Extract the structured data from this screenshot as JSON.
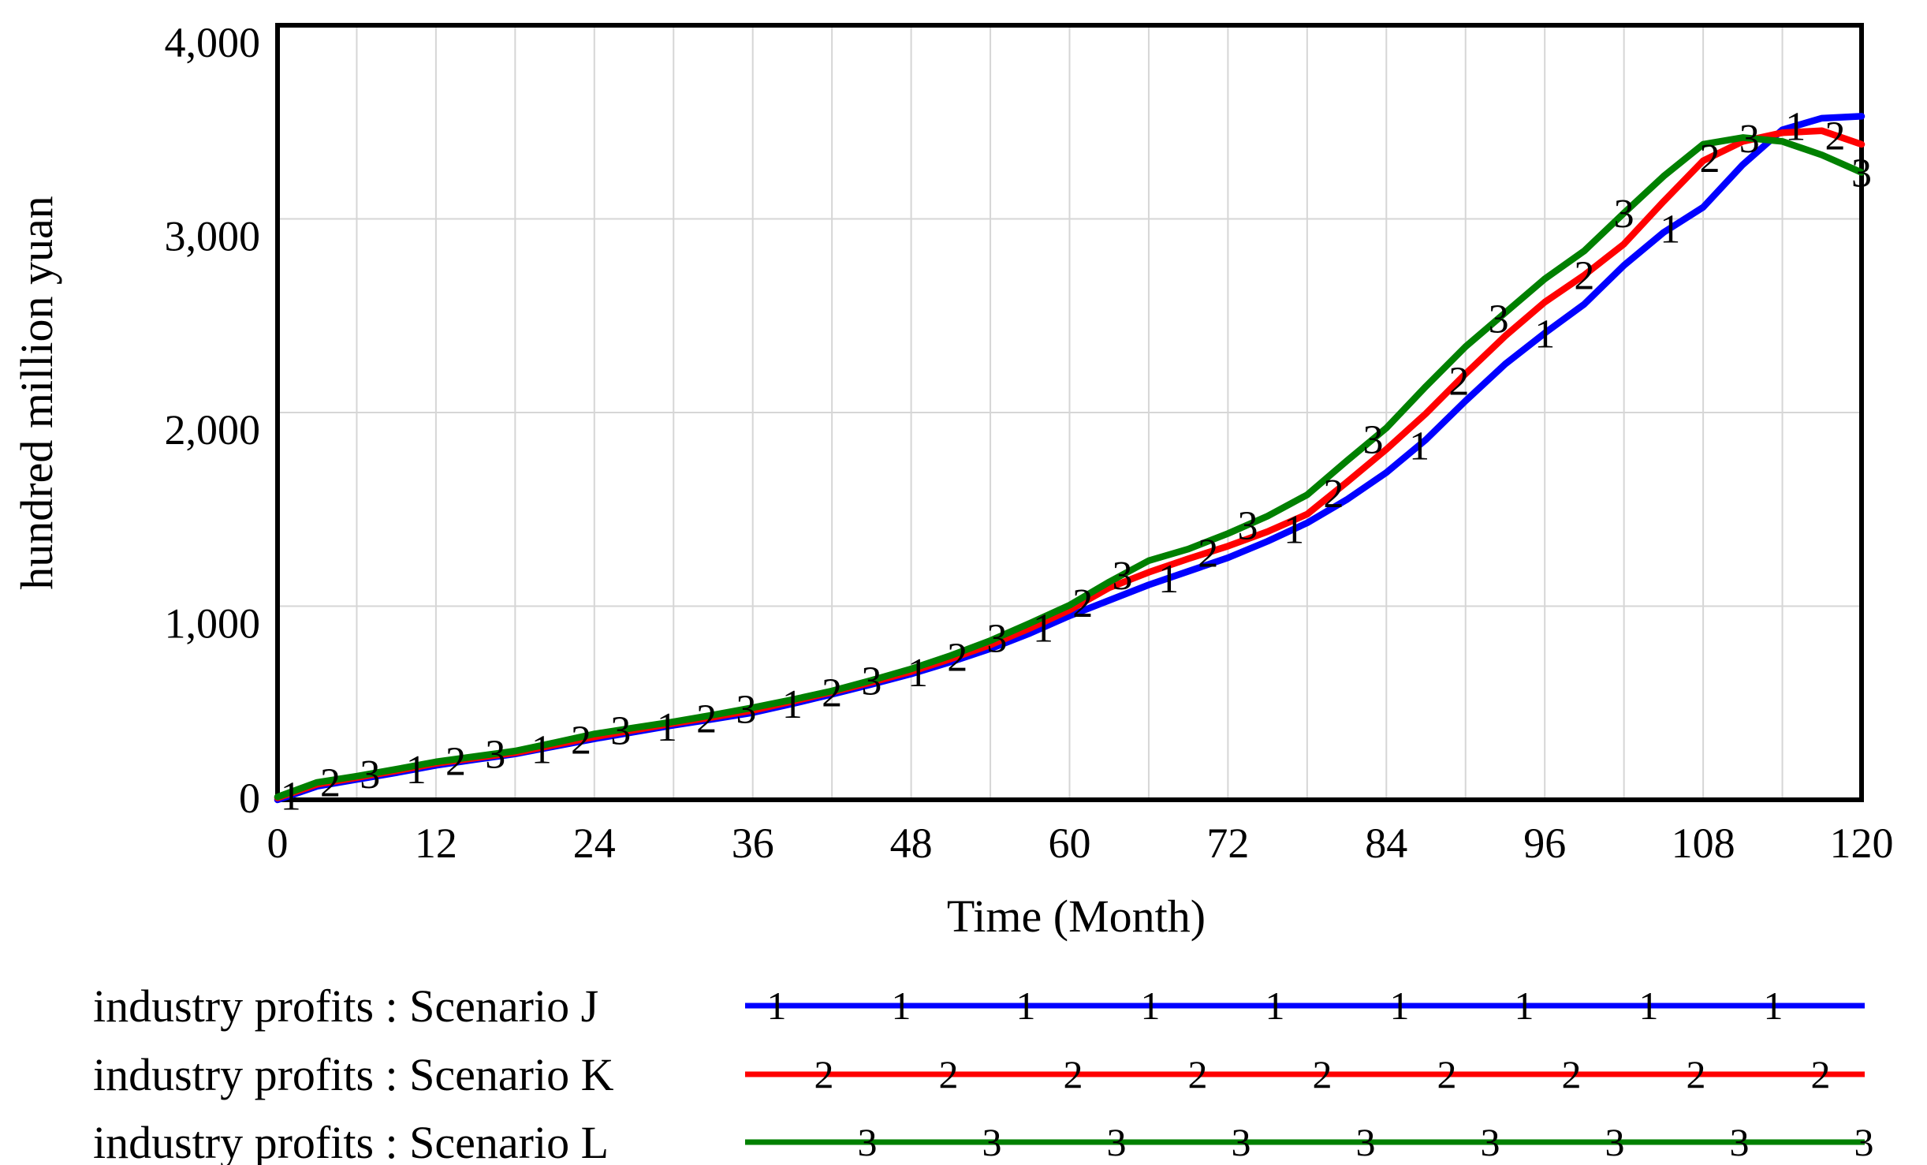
{
  "figure": {
    "y_axis_title": "hundred million yuan",
    "x_axis_title": "Time (Month)",
    "y_tick_labels": [
      "4,000",
      "3,000",
      "2,000",
      "1,000",
      "0"
    ],
    "x_tick_labels": [
      "0",
      "12",
      "24",
      "36",
      "48",
      "60",
      "72",
      "84",
      "96",
      "108",
      "120"
    ]
  },
  "legend": [
    {
      "label": "industry profits : Scenario J",
      "marker": "1",
      "color": "#0000ff"
    },
    {
      "label": "industry profits : Scenario K",
      "marker": "2",
      "color": "#ff0000"
    },
    {
      "label": "industry profits : Scenario L",
      "marker": "3",
      "color": "#008000"
    }
  ],
  "chart_data": {
    "type": "line",
    "title": "",
    "xlabel": "Time (Month)",
    "ylabel": "hundred million yuan",
    "xlim": [
      0,
      120
    ],
    "ylim": [
      0,
      4000
    ],
    "x_tick_step": 12,
    "y_tick_step": 1000,
    "grid": {
      "on": true,
      "x_step": 6,
      "y_step": 1000,
      "color": "#d6d6d6"
    },
    "legend_position": "bottom",
    "x": [
      0,
      3,
      6,
      9,
      12,
      15,
      18,
      21,
      24,
      27,
      30,
      33,
      36,
      39,
      42,
      45,
      48,
      51,
      54,
      57,
      60,
      63,
      66,
      69,
      72,
      75,
      78,
      81,
      84,
      87,
      90,
      93,
      96,
      99,
      102,
      105,
      108,
      111,
      114,
      117,
      120
    ],
    "series": [
      {
        "name": "industry profits : Scenario J",
        "marker": "1",
        "color": "#0000ff",
        "values": [
          0,
          70,
          105,
          140,
          178,
          208,
          237,
          276,
          315,
          350,
          385,
          417,
          450,
          496,
          545,
          596,
          650,
          712,
          780,
          860,
          950,
          1030,
          1110,
          1180,
          1250,
          1335,
          1430,
          1550,
          1690,
          1860,
          2060,
          2250,
          2410,
          2560,
          2760,
          2930,
          3060,
          3280,
          3460,
          3520,
          3530
        ],
        "marker_t": [
          1,
          10.5,
          20,
          29.5,
          39,
          48.5,
          58,
          67.5,
          77,
          86.5,
          96,
          105.5,
          115
        ]
      },
      {
        "name": "industry profits : Scenario K",
        "marker": "2",
        "color": "#ff0000",
        "values": [
          10,
          80,
          115,
          150,
          188,
          216,
          243,
          284,
          325,
          360,
          395,
          427,
          462,
          508,
          556,
          607,
          662,
          728,
          800,
          886,
          980,
          1095,
          1175,
          1245,
          1310,
          1385,
          1475,
          1640,
          1810,
          1995,
          2200,
          2395,
          2570,
          2710,
          2870,
          3090,
          3300,
          3400,
          3445,
          3455,
          3385
        ],
        "marker_t": [
          4,
          13.5,
          23,
          32.5,
          42,
          51.5,
          61,
          70.5,
          80,
          89.5,
          99,
          108.5,
          118
        ]
      },
      {
        "name": "industry profits : Scenario L",
        "marker": "3",
        "color": "#008000",
        "values": [
          15,
          90,
          122,
          158,
          196,
          224,
          252,
          295,
          340,
          372,
          403,
          438,
          476,
          517,
          562,
          617,
          676,
          745,
          822,
          912,
          1005,
          1125,
          1235,
          1295,
          1375,
          1465,
          1575,
          1750,
          1920,
          2135,
          2340,
          2515,
          2690,
          2835,
          3030,
          3220,
          3385,
          3420,
          3400,
          3330,
          3240
        ],
        "marker_t": [
          7,
          16.5,
          26,
          35.5,
          45,
          54.5,
          64,
          73.5,
          83,
          92.5,
          102,
          111.5,
          120
        ]
      }
    ]
  }
}
